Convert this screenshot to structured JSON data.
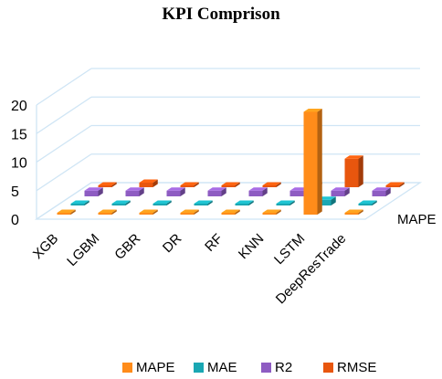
{
  "chart_data": {
    "type": "bar",
    "title": "KPI Comprison",
    "categories": [
      "XGB",
      "LGBM",
      "GBR",
      "DR",
      "RF",
      "KNN",
      "LSTM",
      "DeepResTrade"
    ],
    "depth_label": "MAPE",
    "ylim": [
      0,
      20
    ],
    "yticks": [
      0,
      5,
      10,
      15,
      20
    ],
    "grid": true,
    "legend_position": "bottom",
    "series": [
      {
        "name": "MAPE",
        "color": "#ff8c1a",
        "values": [
          0.1,
          0.1,
          0.1,
          0.1,
          0.1,
          0.1,
          18.0,
          0.1
        ]
      },
      {
        "name": "MAE",
        "color": "#1aa7b3",
        "values": [
          0.3,
          0.3,
          0.3,
          0.3,
          0.3,
          0.3,
          1.0,
          0.3
        ]
      },
      {
        "name": "R2",
        "color": "#8e5cc2",
        "values": [
          1.0,
          1.0,
          1.0,
          1.0,
          1.0,
          1.0,
          1.0,
          1.0
        ]
      },
      {
        "name": "RMSE",
        "color": "#e8560e",
        "values": [
          0.3,
          0.8,
          0.3,
          0.3,
          0.3,
          0.3,
          5.0,
          0.3
        ]
      }
    ]
  }
}
